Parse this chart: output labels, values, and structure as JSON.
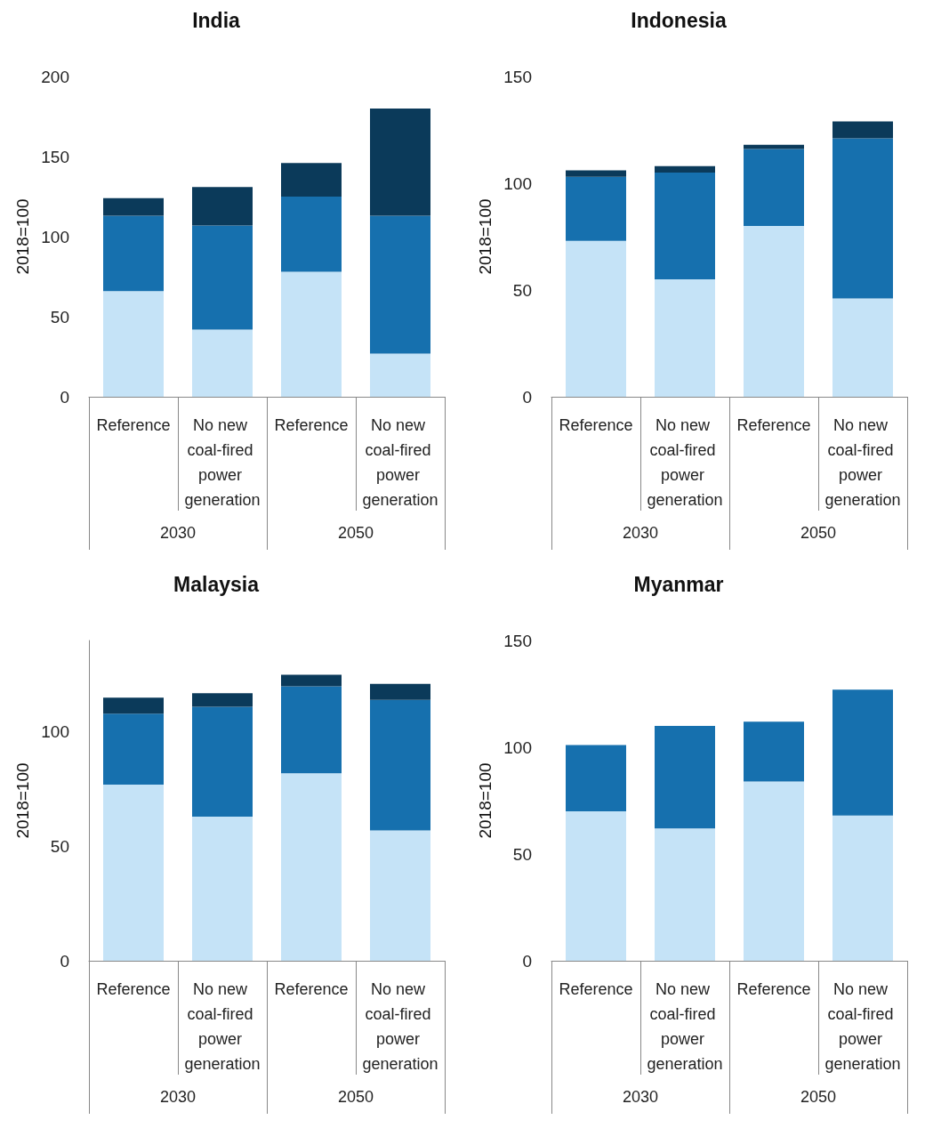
{
  "chart_data": [
    {
      "type": "bar",
      "title": "India",
      "ylabel": "2018=100",
      "stacked": true,
      "grid": false,
      "categories": [
        "Reference",
        "No new coal-fired power generation",
        "Reference",
        "No new coal-fired power generation"
      ],
      "annotations": [
        "2030",
        "2050"
      ],
      "ylim": [
        0,
        200
      ],
      "yticks": [
        0,
        50,
        100,
        150,
        200
      ],
      "series": [
        {
          "color": "#c5e3f7",
          "values": [
            66,
            42,
            78,
            27
          ]
        },
        {
          "color": "#1670ae",
          "values": [
            47,
            65,
            47,
            86
          ]
        },
        {
          "color": "#0b3a5a",
          "values": [
            11,
            24,
            21,
            67
          ]
        }
      ]
    },
    {
      "type": "bar",
      "title": "Indonesia",
      "ylabel": "2018=100",
      "stacked": true,
      "grid": false,
      "categories": [
        "Reference",
        "No new coal-fired power generation",
        "Reference",
        "No new coal-fired power generation"
      ],
      "annotations": [
        "2030",
        "2050"
      ],
      "ylim": [
        0,
        150
      ],
      "yticks": [
        0,
        50,
        100,
        150
      ],
      "series": [
        {
          "color": "#c5e3f7",
          "values": [
            73,
            55,
            80,
            46
          ]
        },
        {
          "color": "#1670ae",
          "values": [
            30,
            50,
            36,
            75
          ]
        },
        {
          "color": "#0b3a5a",
          "values": [
            3,
            3,
            2,
            8
          ]
        }
      ]
    },
    {
      "type": "bar",
      "title": "Malaysia",
      "ylabel": "2018=100",
      "stacked": true,
      "grid": false,
      "categories": [
        "Reference",
        "No new coal-fired power generation",
        "Reference",
        "No new coal-fired power generation"
      ],
      "annotations": [
        "2030",
        "2050"
      ],
      "ylim": [
        0,
        140
      ],
      "yticks": [
        0,
        50,
        100
      ],
      "series": [
        {
          "color": "#c5e3f7",
          "values": [
            77,
            63,
            82,
            57
          ]
        },
        {
          "color": "#1670ae",
          "values": [
            31,
            48,
            38,
            57
          ]
        },
        {
          "color": "#0b3a5a",
          "values": [
            7,
            6,
            5,
            7
          ]
        }
      ]
    },
    {
      "type": "bar",
      "title": "Myanmar",
      "ylabel": "2018=100",
      "stacked": true,
      "grid": false,
      "categories": [
        "Reference",
        "No new coal-fired power generation",
        "Reference",
        "No new coal-fired power generation"
      ],
      "annotations": [
        "2030",
        "2050"
      ],
      "ylim": [
        0,
        150
      ],
      "yticks": [
        0,
        50,
        100,
        150
      ],
      "series": [
        {
          "color": "#c5e3f7",
          "values": [
            70,
            62,
            84,
            68
          ]
        },
        {
          "color": "#1670ae",
          "values": [
            31,
            48,
            28,
            59
          ]
        }
      ]
    }
  ]
}
